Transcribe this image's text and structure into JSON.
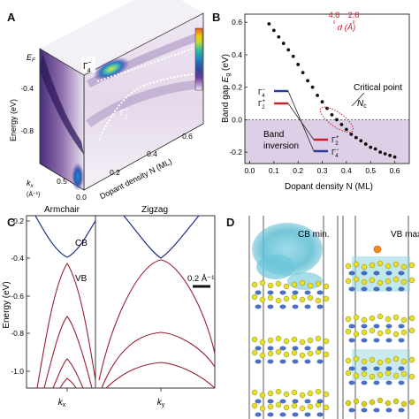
{
  "panels": {
    "A": {
      "letter": "A",
      "ylabel": "Energy (eV)",
      "ef_label": "E",
      "ef_sub": "F",
      "yticks": [
        "-0.4",
        "-0.8"
      ],
      "kx_label": "k",
      "kx_sub": "x",
      "kx_unit": "(Å⁻¹)",
      "kx_ticks": [
        "0.5",
        "0.0"
      ],
      "xlabel": "Dopant density N (ML)",
      "xticks": [
        "0.2",
        "0.4",
        "0.6"
      ],
      "state_upper": "Γ",
      "state_upper_sup": "−",
      "state_upper_sub": "4",
      "state_lower": "Γ",
      "state_lower_sup": "+",
      "state_lower_sub": "2",
      "colorbar": [
        "#f0e9f2",
        "#6f3a9c",
        "#2b4aa8",
        "#1e86c4",
        "#2cc0a0",
        "#c7dc2b",
        "#f2c90f",
        "#e8562a"
      ]
    },
    "B": {
      "letter": "B",
      "top_ticks": [
        "4.8",
        "2.8"
      ],
      "top_label": "d (Å)",
      "critical_label": "Critical point",
      "nc_label": "N",
      "nc_sub": "c",
      "band_inversion": [
        "Band",
        "inversion"
      ],
      "legend_left": [
        {
          "name": "Γ",
          "sup": "−",
          "sub": "4",
          "color": "#2a3a9c"
        },
        {
          "name": "Γ",
          "sup": "+",
          "sub": "2",
          "color": "#cc2030"
        }
      ],
      "legend_right": [
        {
          "name": "Γ",
          "sup": "+",
          "sub": "2",
          "color": "#cc2030"
        },
        {
          "name": "Γ",
          "sup": "−",
          "sub": "4",
          "color": "#2a3a9c"
        }
      ],
      "chart_data": {
        "type": "scatter",
        "xlabel": "Dopant density N (ML)",
        "ylabel": "Band gap E_g (eV)",
        "xlim": [
          -0.02,
          0.66
        ],
        "ylim": [
          -0.27,
          0.65
        ],
        "xticks": [
          0.0,
          0.1,
          0.2,
          0.3,
          0.4,
          0.5,
          0.6
        ],
        "yticks": [
          -0.2,
          0.0,
          0.2,
          0.4,
          0.6
        ],
        "x": [
          0.08,
          0.1,
          0.12,
          0.14,
          0.16,
          0.18,
          0.2,
          0.22,
          0.24,
          0.26,
          0.28,
          0.3,
          0.32,
          0.34,
          0.36,
          0.38,
          0.4,
          0.42,
          0.44,
          0.46,
          0.48,
          0.5,
          0.52,
          0.54,
          0.56,
          0.58,
          0.6
        ],
        "y": [
          0.59,
          0.55,
          0.51,
          0.47,
          0.43,
          0.39,
          0.34,
          0.29,
          0.24,
          0.2,
          0.15,
          0.11,
          0.07,
          0.03,
          0.0,
          -0.03,
          -0.06,
          -0.09,
          -0.11,
          -0.13,
          -0.15,
          -0.17,
          -0.18,
          -0.2,
          -0.21,
          -0.22,
          -0.23
        ],
        "shaded_region_y": [
          -0.27,
          0.0
        ],
        "gap_zero_line": 0.0
      }
    },
    "C": {
      "letter": "C",
      "ylabel": "Energy (eV)",
      "yticks": [
        "-0.2",
        "-0.4",
        "-0.6",
        "-0.8",
        "-1.0"
      ],
      "sub_titles": [
        "Armchair",
        "Zigzag"
      ],
      "cb_label": "CB",
      "vb_label": "VB",
      "scale_label": "0.2 Å⁻¹",
      "x_axis_labels": [
        {
          "k": "k",
          "sub": "x"
        },
        {
          "k": "k",
          "sub": "y"
        }
      ],
      "chart_data": {
        "type": "line",
        "ylim": [
          -1.1,
          -0.17
        ],
        "series": [
          {
            "name": "CB",
            "values": [
              -0.4
            ]
          },
          {
            "name": "VB",
            "values": [
              -0.43
            ]
          }
        ]
      }
    },
    "D": {
      "letter": "D",
      "labels": [
        "CB min.",
        "VB max."
      ]
    }
  }
}
